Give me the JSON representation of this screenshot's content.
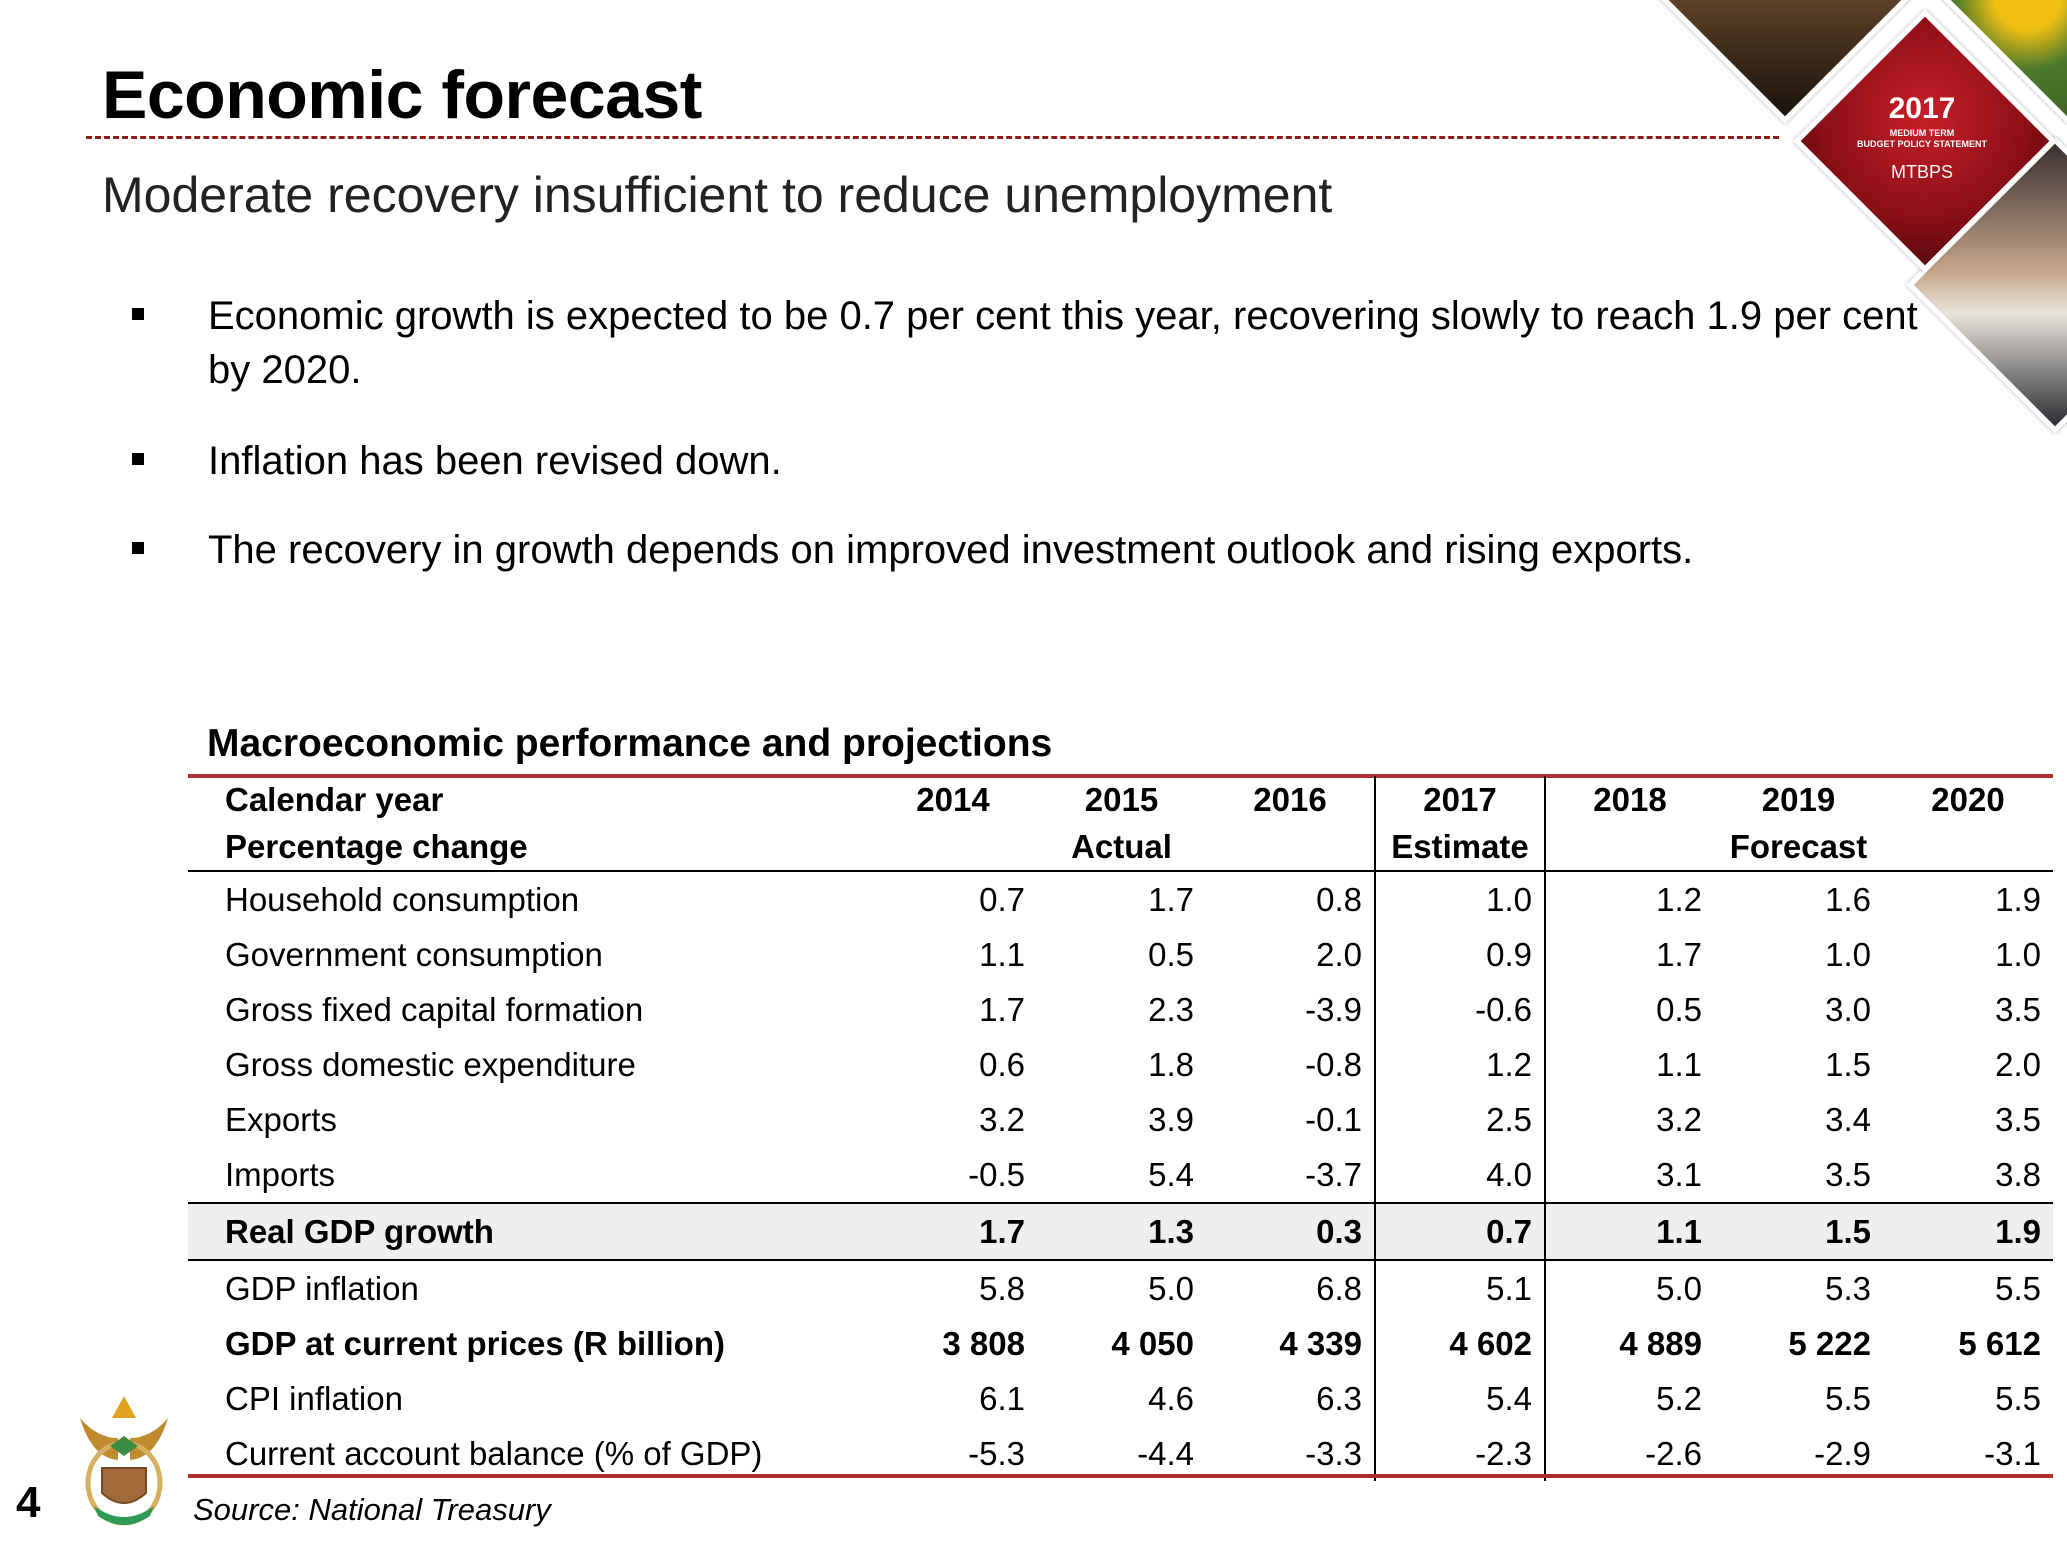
{
  "title": "Economic forecast",
  "subtitle": "Moderate recovery insufficient to reduce unemployment",
  "bullets": [
    "Economic growth is expected to be 0.7 per cent this year, recovering slowly to reach 1.9 per cent by 2020.",
    "Inflation has been revised down.",
    "The recovery in growth depends on improved investment outlook and rising exports."
  ],
  "badge": {
    "year": "2017",
    "line1": "MEDIUM TERM",
    "line2": "BUDGET POLICY STATEMENT",
    "abbr": "MTBPS"
  },
  "table": {
    "title": "Macroeconomic performance and projections",
    "header1": [
      "Calendar year",
      "2014",
      "2015",
      "2016",
      "2017",
      "2018",
      "2019",
      "2020"
    ],
    "header2": {
      "label": "Percentage change",
      "actual": "Actual",
      "estimate": "Estimate",
      "forecast": "Forecast"
    },
    "rows": [
      {
        "label": "Household consumption",
        "values": [
          "0.7",
          "1.7",
          "0.8",
          "1.0",
          "1.2",
          "1.6",
          "1.9"
        ]
      },
      {
        "label": "Government consumption",
        "values": [
          "1.1",
          "0.5",
          "2.0",
          "0.9",
          "1.7",
          "1.0",
          "1.0"
        ]
      },
      {
        "label": "Gross fixed capital formation",
        "values": [
          "1.7",
          "2.3",
          "-3.9",
          "-0.6",
          "0.5",
          "3.0",
          "3.5"
        ]
      },
      {
        "label": "Gross domestic expenditure",
        "values": [
          "0.6",
          "1.8",
          "-0.8",
          "1.2",
          "1.1",
          "1.5",
          "2.0"
        ]
      },
      {
        "label": "Exports",
        "values": [
          "3.2",
          "3.9",
          "-0.1",
          "2.5",
          "3.2",
          "3.4",
          "3.5"
        ]
      },
      {
        "label": "Imports",
        "values": [
          "-0.5",
          "5.4",
          "-3.7",
          "4.0",
          "3.1",
          "3.5",
          "3.8"
        ]
      },
      {
        "label": "Real GDP growth",
        "values": [
          "1.7",
          "1.3",
          "0.3",
          "0.7",
          "1.1",
          "1.5",
          "1.9"
        ]
      },
      {
        "label": "GDP inflation",
        "values": [
          "5.8",
          "5.0",
          "6.8",
          "5.1",
          "5.0",
          "5.3",
          "5.5"
        ]
      },
      {
        "label": "GDP at current prices (R billion)",
        "values": [
          "3 808",
          "4 050",
          "4 339",
          "4 602",
          "4 889",
          "5 222",
          "5 612"
        ]
      },
      {
        "label": "CPI inflation",
        "values": [
          "6.1",
          "4.6",
          "6.3",
          "5.4",
          "5.2",
          "5.5",
          "5.5"
        ]
      },
      {
        "label": "Current account balance (% of GDP)",
        "values": [
          "-5.3",
          "-4.4",
          "-3.3",
          "-2.3",
          "-2.6",
          "-2.9",
          "-3.1"
        ]
      }
    ]
  },
  "source": "Source: National Treasury",
  "page_number": "4"
}
